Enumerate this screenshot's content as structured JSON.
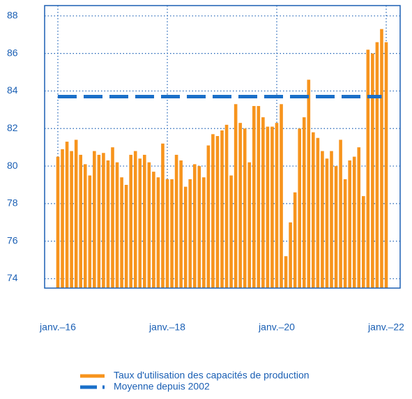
{
  "chart_data": {
    "type": "bar",
    "categories": [
      "janv.–16",
      null,
      null,
      null,
      null,
      null,
      null,
      null,
      null,
      null,
      null,
      null,
      null,
      null,
      null,
      null,
      null,
      null,
      null,
      null,
      null,
      null,
      null,
      null,
      "janv.–18",
      null,
      null,
      null,
      null,
      null,
      null,
      null,
      null,
      null,
      null,
      null,
      null,
      null,
      null,
      null,
      null,
      null,
      null,
      null,
      null,
      null,
      null,
      null,
      "janv.–20",
      null,
      null,
      null,
      null,
      null,
      null,
      null,
      null,
      null,
      null,
      null,
      null,
      null,
      null,
      null,
      null,
      null,
      null,
      null,
      null,
      null,
      null,
      null,
      "janv.–22"
    ],
    "series": [
      {
        "name": "Taux d'utilisation des capacités de production",
        "color": "#f7941d",
        "values": [
          80.5,
          80.9,
          81.3,
          80.8,
          81.4,
          80.6,
          80.1,
          79.5,
          80.8,
          80.6,
          80.7,
          80.3,
          81.0,
          80.2,
          79.4,
          79.0,
          80.6,
          80.8,
          80.4,
          80.6,
          80.2,
          79.7,
          79.4,
          81.2,
          79.3,
          79.3,
          80.6,
          80.3,
          78.9,
          79.3,
          80.1,
          80.0,
          79.4,
          81.1,
          81.7,
          81.6,
          81.9,
          82.2,
          79.5,
          83.3,
          82.3,
          82.0,
          80.2,
          83.2,
          83.2,
          82.6,
          82.1,
          82.1,
          82.3,
          83.3,
          75.2,
          77.0,
          78.6,
          82.0,
          82.6,
          84.6,
          81.8,
          81.5,
          80.8,
          80.4,
          80.8,
          80.0,
          81.4,
          79.3,
          80.3,
          80.5,
          81.0,
          78.4,
          86.2,
          86.0,
          86.6,
          87.3,
          86.6
        ]
      },
      {
        "name": "Moyenne depuis 2002",
        "color": "#1a6fc9",
        "type": "line",
        "dashed": true,
        "value": 83.7
      }
    ],
    "ylim": [
      73.5,
      88.55
    ],
    "yticks": [
      74,
      76,
      78,
      80,
      82,
      84,
      86,
      88
    ],
    "grid": true
  }
}
